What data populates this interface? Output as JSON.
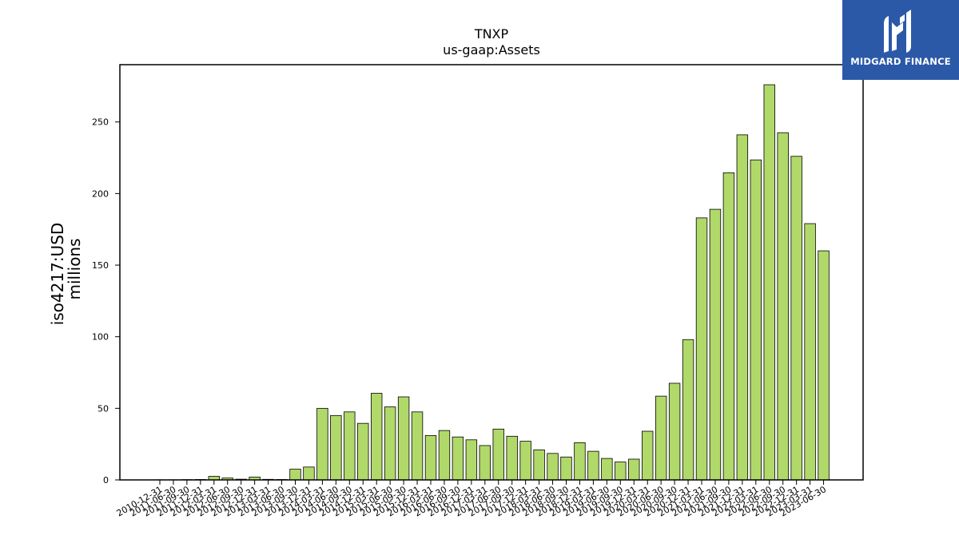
{
  "logo": {
    "brand": "MIDGARD FINANCE",
    "icon": "midgard-logo-icon",
    "background": "#2b59a8"
  },
  "chart_data": {
    "type": "bar",
    "title": "TNXP",
    "subtitle": "us-gaap:Assets",
    "ylabel_line1": "iso4217:USD",
    "ylabel_line2": "millions",
    "xlabel": "",
    "ylim": [
      0,
      290
    ],
    "yticks": [
      0,
      50,
      100,
      150,
      200,
      250
    ],
    "bar_color": "#b0d96a",
    "edge_color": "#000000",
    "grid": false,
    "categories": [
      "2010-12-31",
      "2011-06-30",
      "2011-09-30",
      "2011-12-31",
      "2012-03-31",
      "2012-06-30",
      "2012-09-30",
      "2012-12-31",
      "2013-03-31",
      "2013-06-30",
      "2013-09-30",
      "2013-12-31",
      "2014-03-31",
      "2014-06-30",
      "2014-09-30",
      "2014-12-31",
      "2015-03-31",
      "2015-06-30",
      "2015-09-30",
      "2015-12-31",
      "2016-03-31",
      "2016-06-30",
      "2016-09-30",
      "2016-12-31",
      "2017-03-31",
      "2017-06-30",
      "2017-09-30",
      "2017-12-31",
      "2018-03-31",
      "2018-06-30",
      "2018-09-30",
      "2018-12-31",
      "2019-03-31",
      "2019-06-30",
      "2019-09-30",
      "2019-12-31",
      "2020-03-31",
      "2020-06-30",
      "2020-09-30",
      "2020-12-31",
      "2021-03-31",
      "2021-06-30",
      "2021-09-30",
      "2021-12-31",
      "2022-03-31",
      "2022-06-30",
      "2022-09-30",
      "2022-12-31",
      "2023-03-31",
      "2023-06-30"
    ],
    "values": [
      0.1,
      0.1,
      0.2,
      0.3,
      2.5,
      1.3,
      0.5,
      2.0,
      0.4,
      0.3,
      7.5,
      9,
      50,
      45,
      47.5,
      39.5,
      60.5,
      51,
      58,
      47.5,
      31,
      34.5,
      30,
      28,
      24,
      35.5,
      30.5,
      27,
      21,
      18.5,
      16,
      26,
      20,
      15,
      12.5,
      14.5,
      34,
      58.5,
      67.5,
      98,
      183,
      189,
      214.5,
      241,
      223.5,
      276,
      242.5,
      226,
      179,
      160
    ]
  }
}
